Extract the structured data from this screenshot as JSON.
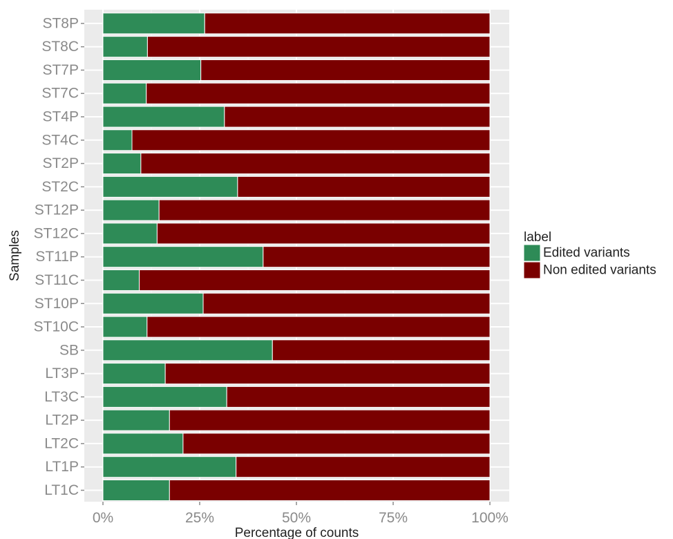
{
  "chart_data": {
    "type": "bar",
    "orientation": "horizontal",
    "stacked": true,
    "xlabel": "Percentage of counts",
    "ylabel": "Samples",
    "xlim": [
      0,
      100
    ],
    "x_ticks": [
      "0%",
      "25%",
      "50%",
      "75%",
      "100%"
    ],
    "grid": true,
    "legend_position": "right",
    "categories": [
      "ST8P",
      "ST8C",
      "ST7P",
      "ST7C",
      "ST4P",
      "ST4C",
      "ST2P",
      "ST2C",
      "ST12P",
      "ST12C",
      "ST11P",
      "ST11C",
      "ST10P",
      "ST10C",
      "SB",
      "LT3P",
      "LT3C",
      "LT2P",
      "LT2C",
      "LT1P",
      "LT1C"
    ],
    "legend_title": "label",
    "series": [
      {
        "name": "Edited variants",
        "color": "#2e8b57",
        "values": [
          26.3,
          11.5,
          25.3,
          11.2,
          31.4,
          7.5,
          9.8,
          34.8,
          14.5,
          14.0,
          41.4,
          9.4,
          25.9,
          11.4,
          43.8,
          16.1,
          32.0,
          17.2,
          20.7,
          34.4,
          17.2
        ]
      },
      {
        "name": "Non edited variants",
        "color": "#7a0000",
        "values": [
          73.7,
          88.5,
          74.7,
          88.8,
          68.6,
          92.5,
          90.2,
          65.2,
          85.5,
          86.0,
          58.6,
          90.6,
          74.1,
          88.6,
          56.2,
          83.9,
          68.0,
          82.8,
          79.3,
          65.6,
          82.8
        ]
      }
    ]
  }
}
